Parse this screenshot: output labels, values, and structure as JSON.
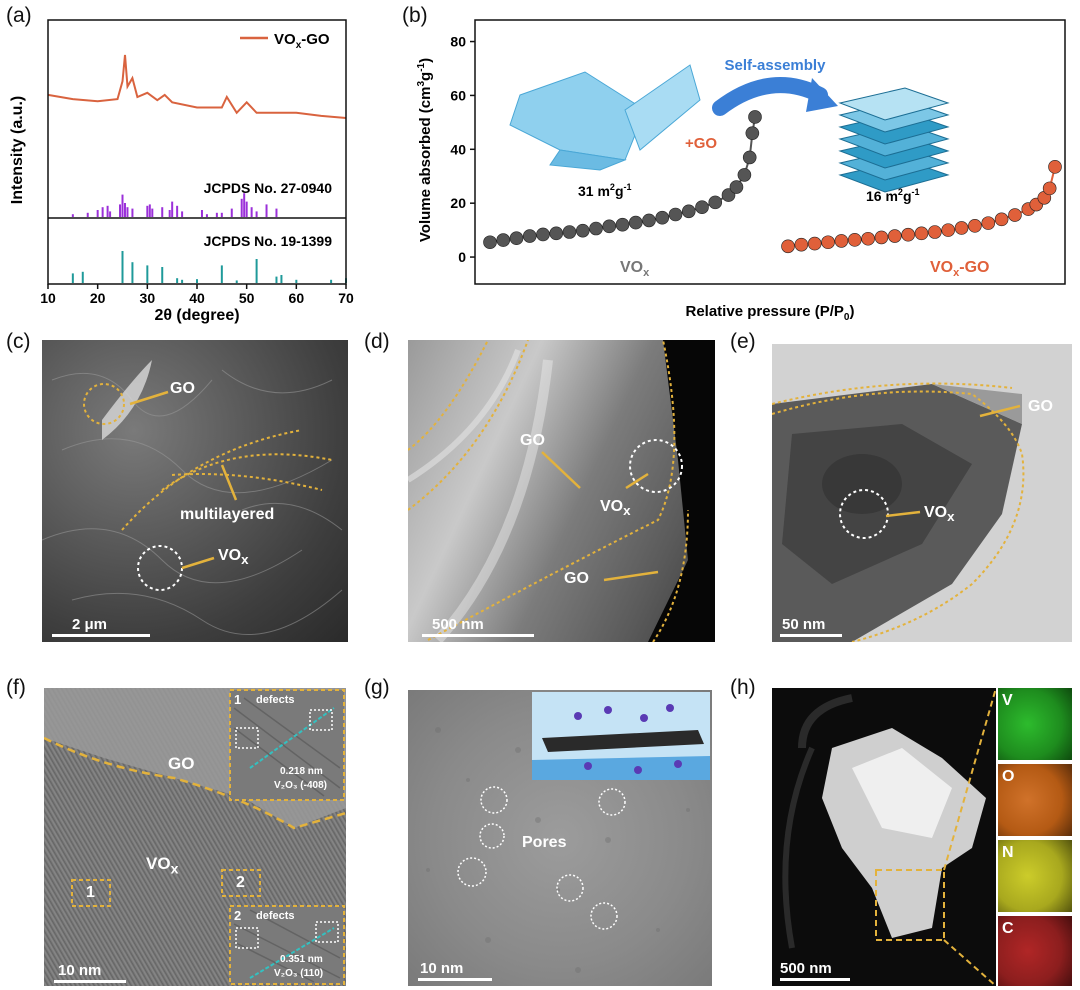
{
  "panels": {
    "a": "(a)",
    "b": "(b)",
    "c": "(c)",
    "d": "(d)",
    "e": "(e)",
    "f": "(f)",
    "g": "(g)",
    "h": "(h)"
  },
  "xrd": {
    "legend": "VO",
    "legend_sub": "x",
    "legend_suffix": "-GO",
    "ylabel": "Intensity (a.u.)",
    "xlabel": "2θ (degree)",
    "ref1": "JCPDS No. 27-0940",
    "ref2": "JCPDS No. 19-1399",
    "xticks": [
      "10",
      "20",
      "30",
      "40",
      "50",
      "60",
      "70"
    ],
    "colors": {
      "trace": "#d9633f",
      "ref1": "#9b30d9",
      "ref2": "#1f9a9a"
    }
  },
  "chart_data": [
    {
      "type": "line",
      "panel": "a",
      "series": [
        {
          "name": "VOx-GO",
          "x": [
            10,
            15,
            20,
            24,
            25,
            25.5,
            26,
            27,
            28,
            30,
            32,
            33.5,
            35,
            40,
            45,
            46,
            48,
            50,
            52,
            55,
            60,
            65,
            70
          ],
          "values": [
            0.62,
            0.58,
            0.56,
            0.58,
            0.75,
            1.0,
            0.7,
            0.78,
            0.6,
            0.64,
            0.57,
            0.62,
            0.55,
            0.5,
            0.5,
            0.6,
            0.45,
            0.55,
            0.45,
            0.45,
            0.45,
            0.42,
            0.4
          ]
        }
      ],
      "ref1_peaks": [
        15,
        18,
        20,
        21,
        22,
        22.5,
        24.5,
        25,
        25.5,
        26,
        27,
        30,
        30.5,
        31,
        33,
        34.5,
        35,
        36,
        37,
        41,
        42,
        44,
        45,
        47,
        49,
        49.5,
        50,
        51,
        52,
        54,
        56
      ],
      "ref1_heights": [
        0.1,
        0.15,
        0.25,
        0.35,
        0.4,
        0.2,
        0.45,
        0.8,
        0.5,
        0.35,
        0.3,
        0.4,
        0.45,
        0.3,
        0.35,
        0.25,
        0.55,
        0.4,
        0.2,
        0.25,
        0.1,
        0.15,
        0.15,
        0.3,
        0.65,
        0.85,
        0.55,
        0.35,
        0.2,
        0.45,
        0.3
      ],
      "ref2_peaks": [
        15,
        17,
        25,
        27,
        30,
        33,
        36,
        37,
        40,
        45,
        48,
        52,
        56,
        57,
        60,
        67,
        70
      ],
      "ref2_heights": [
        0.3,
        0.35,
        1.0,
        0.65,
        0.55,
        0.5,
        0.15,
        0.1,
        0.12,
        0.55,
        0.08,
        0.75,
        0.2,
        0.25,
        0.1,
        0.1,
        0.15
      ],
      "xlim": [
        10,
        70
      ]
    },
    {
      "type": "scatter",
      "panel": "b",
      "xlabel": "Relative pressure (P/P",
      "xlabel_sub": "0",
      "xlabel_suffix": ")",
      "ylabel": "Volume absorbed (cm",
      "ylabel_sup": "3",
      "ylabel_mid": "g",
      "ylabel_sup2": "-1",
      "ylabel_suffix": ")",
      "yticks": [
        0,
        20,
        40,
        60,
        80
      ],
      "ylim": [
        -10,
        88
      ],
      "series": [
        {
          "name": "VOx",
          "x": [
            0.0,
            0.05,
            0.1,
            0.15,
            0.2,
            0.25,
            0.3,
            0.35,
            0.4,
            0.45,
            0.5,
            0.55,
            0.6,
            0.65,
            0.7,
            0.75,
            0.8,
            0.85,
            0.9,
            0.93,
            0.96,
            0.98,
            0.99,
            1.0
          ],
          "values": [
            5.5,
            6.3,
            7.0,
            7.8,
            8.4,
            8.8,
            9.3,
            9.8,
            10.6,
            11.4,
            12.0,
            12.8,
            13.6,
            14.6,
            15.8,
            17.0,
            18.5,
            20.3,
            23.0,
            26.0,
            30.5,
            37.0,
            46.0,
            52.0
          ]
        },
        {
          "name": "VOx-GO",
          "x": [
            0.0,
            0.05,
            0.1,
            0.15,
            0.2,
            0.25,
            0.3,
            0.35,
            0.4,
            0.45,
            0.5,
            0.55,
            0.6,
            0.65,
            0.7,
            0.75,
            0.8,
            0.85,
            0.9,
            0.93,
            0.96,
            0.98,
            1.0
          ],
          "values": [
            4.0,
            4.6,
            5.0,
            5.5,
            6.0,
            6.4,
            6.8,
            7.3,
            7.8,
            8.3,
            8.8,
            9.3,
            10.0,
            10.8,
            11.6,
            12.6,
            14.0,
            15.6,
            17.8,
            19.5,
            22.0,
            25.5,
            33.5
          ]
        }
      ]
    }
  ],
  "bet": {
    "self_assembly": "Self-assembly",
    "plus_go": "+GO",
    "area_vox": "31 m",
    "area_vox_sup": "2",
    "area_vox_mid": "g",
    "area_vox_sup2": "-1",
    "area_go": "16 m",
    "area_go_sup": "2",
    "area_go_mid": "g",
    "area_go_sup2": "-1",
    "label_vox": "VO",
    "label_vox_sub": "x",
    "label_voxgo": "VO",
    "label_voxgo_sub": "x",
    "label_voxgo_suffix": "-GO",
    "colors": {
      "vox": "#555555",
      "voxgo": "#e0603a",
      "assembly": "#3b7fd6"
    }
  },
  "sem_c": {
    "go": "GO",
    "multilayered": "multilayered",
    "vox": "VO",
    "vox_sub": "x",
    "scale": "2 μm"
  },
  "sem_d": {
    "go1": "GO",
    "vox": "VO",
    "vox_sub": "x",
    "go2": "GO",
    "scale": "500 nm"
  },
  "tem_e": {
    "go": "GO",
    "vox": "VO",
    "vox_sub": "x",
    "scale": "50 nm"
  },
  "hrtem_f": {
    "go": "GO",
    "vox": "VO",
    "vox_sub": "x",
    "box1": "1",
    "box2": "2",
    "inset1_num": "1",
    "inset1_defects": "defects",
    "inset1_d": "0.218 nm",
    "inset1_plane": "V₂O₃ (-408)",
    "inset2_num": "2",
    "inset2_defects": "defects",
    "inset2_d": "0.351 nm",
    "inset2_plane": "V₂O₃ (110)",
    "scale": "10 nm"
  },
  "tem_g": {
    "pores": "Pores",
    "scale": "10 nm"
  },
  "haadf_h": {
    "v": "V",
    "o": "O",
    "n": "N",
    "c": "C",
    "scale": "500 nm",
    "colors": {
      "v": "#1e8c1e",
      "o": "#b45a14",
      "n": "#a8a81e",
      "c": "#8c1e1e"
    }
  }
}
